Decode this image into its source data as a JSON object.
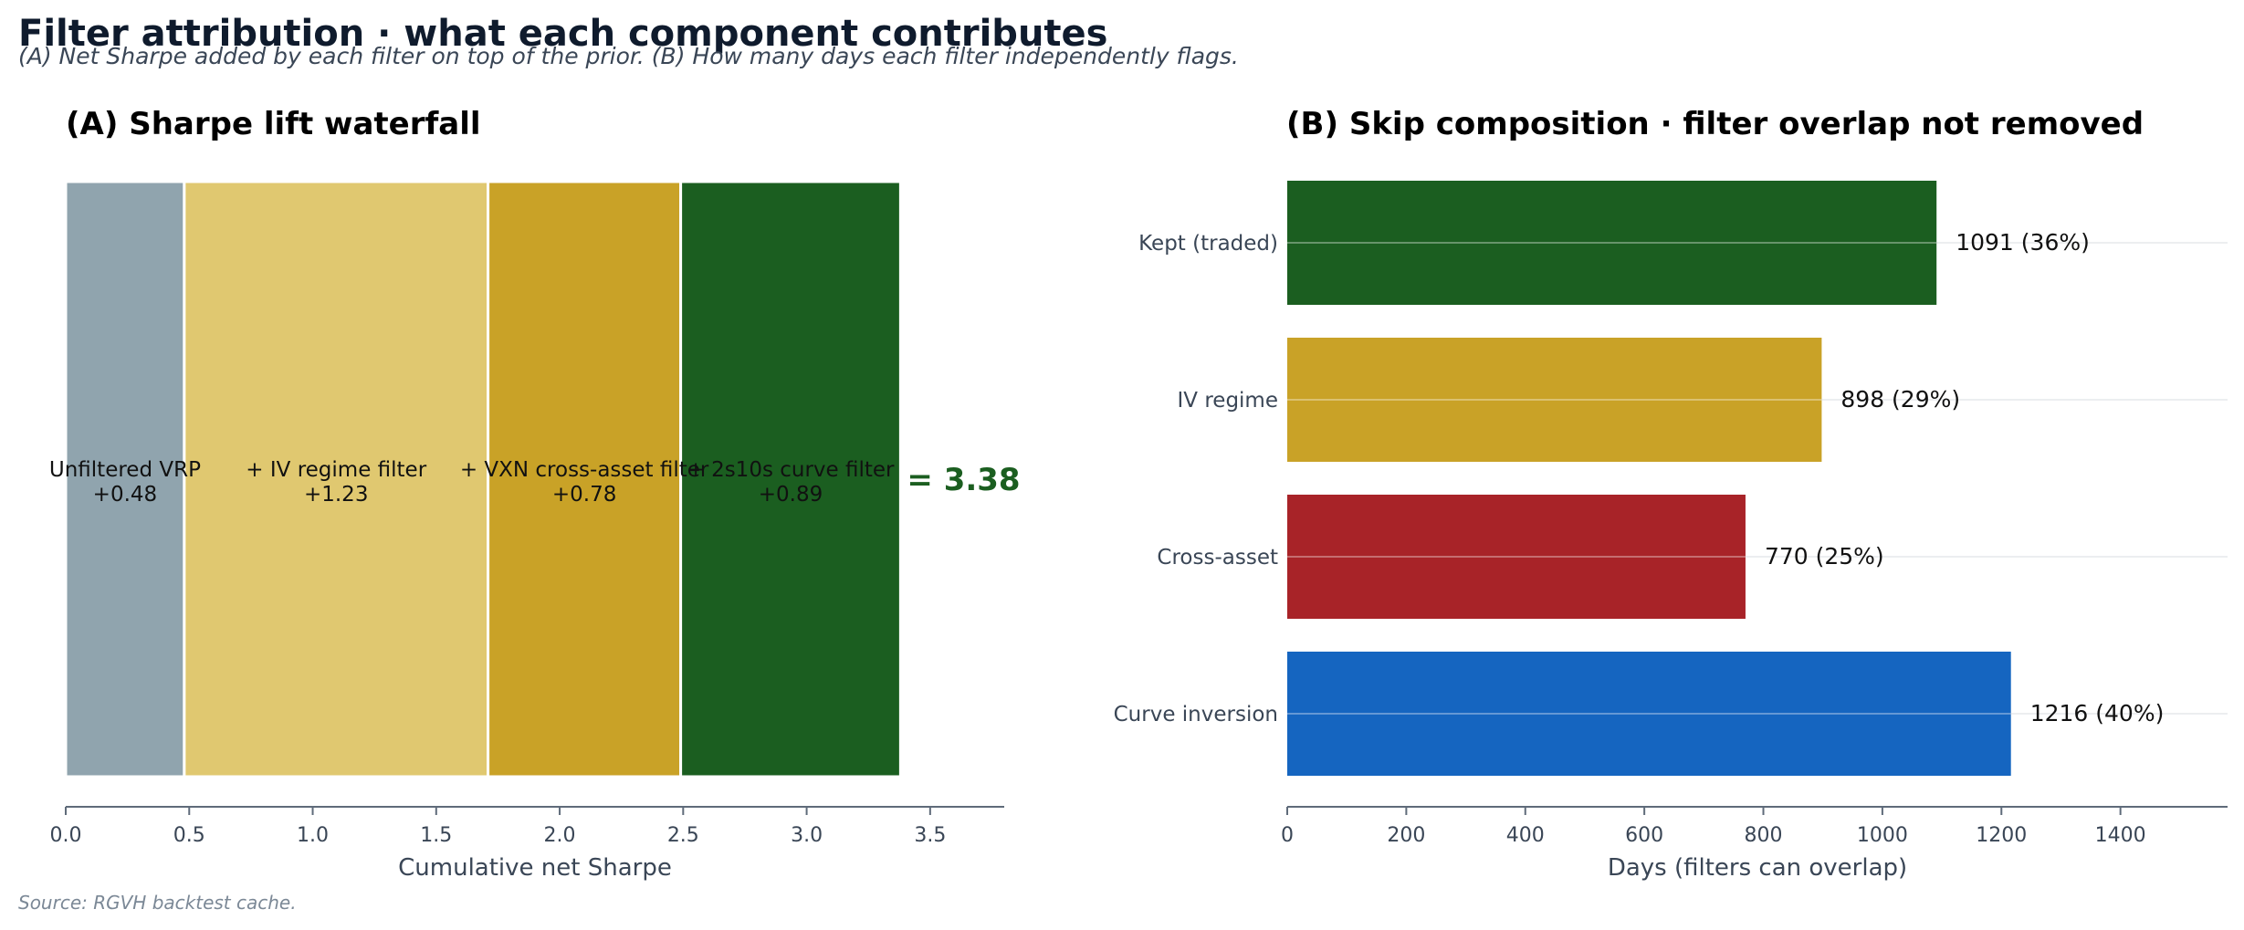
{
  "title": "Filter attribution  ·  what each component contributes",
  "subtitle": "(A) Net Sharpe added by each filter on top of the prior. (B) How many days each filter independently flags.",
  "source": "Source: RGVH backtest cache.",
  "chart_data": [
    {
      "type": "bar",
      "orientation": "horizontal-stacked-waterfall",
      "title": "(A) Sharpe lift waterfall",
      "xlabel": "Cumulative net Sharpe",
      "ylabel": "",
      "xlim": [
        0,
        3.8
      ],
      "xticks": [
        "0.0",
        "0.5",
        "1.0",
        "1.5",
        "2.0",
        "2.5",
        "3.0",
        "3.5"
      ],
      "segments": [
        {
          "name": "Unfiltered VRP",
          "value": 0.48,
          "label": "+0.48",
          "color": "#90a4ae"
        },
        {
          "name": "+ IV regime filter",
          "value": 1.23,
          "label": "+1.23",
          "color": "#e0c870"
        },
        {
          "name": "+ VXN cross-asset filter",
          "value": 0.78,
          "label": "+0.78",
          "color": "#c9a227"
        },
        {
          "name": "+ 2s10s curve filter",
          "value": 0.89,
          "label": "+0.89",
          "color": "#1b5e20"
        }
      ],
      "total_label": "= 3.38",
      "total": 3.38,
      "grid": false
    },
    {
      "type": "bar",
      "orientation": "horizontal",
      "title": "(B) Skip composition  ·  filter overlap not removed",
      "xlabel": "Days  (filters can overlap)",
      "ylabel": "",
      "xlim": [
        0,
        1580
      ],
      "xticks": [
        "0",
        "200",
        "400",
        "600",
        "800",
        "1000",
        "1200",
        "1400"
      ],
      "categories": [
        "Kept (traded)",
        "IV regime",
        "Cross-asset",
        "Curve inversion"
      ],
      "values": [
        1091,
        898,
        770,
        1216
      ],
      "value_labels": [
        "1091  (36%)",
        "898  (29%)",
        "770  (25%)",
        "1216  (40%)"
      ],
      "colors": [
        "#1b5e20",
        "#c9a227",
        "#a82328",
        "#1565c0"
      ],
      "grid": true
    }
  ]
}
